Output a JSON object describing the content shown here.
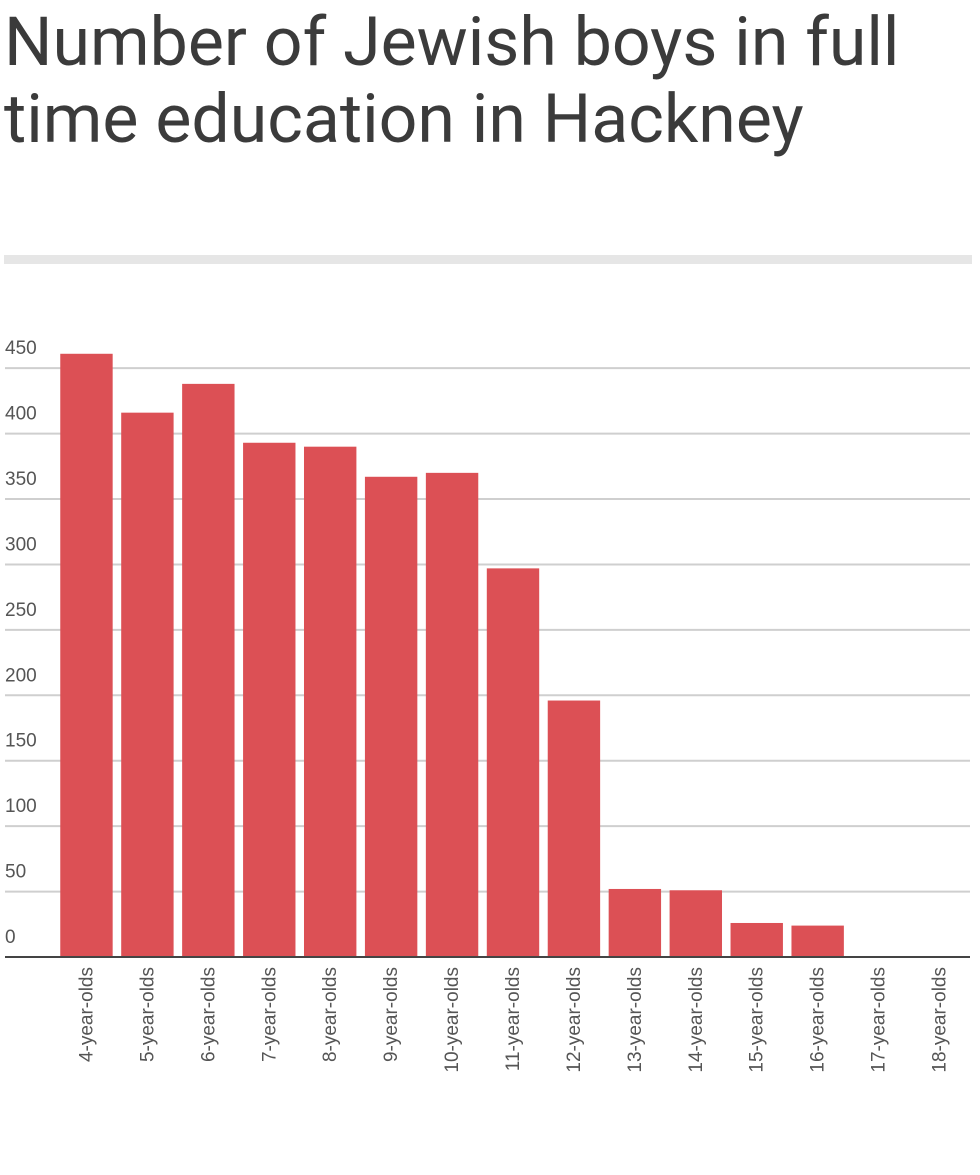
{
  "chart_data": {
    "type": "bar",
    "title": "Number of Jewish boys in full time education in Hackney",
    "categories": [
      "4-year-olds",
      "5-year-olds",
      "6-year-olds",
      "7-year-olds",
      "8-year-olds",
      "9-year-olds",
      "10-year-olds",
      "11-year-olds",
      "12-year-olds",
      "13-year-olds",
      "14-year-olds",
      "15-year-olds",
      "16-year-olds",
      "17-year-olds",
      "18-year-olds"
    ],
    "values": [
      461,
      416,
      438,
      393,
      390,
      367,
      370,
      297,
      196,
      52,
      51,
      26,
      24,
      0,
      0
    ],
    "color": "#dc5055",
    "ylim": [
      0,
      470
    ],
    "yticks": [
      0,
      50,
      100,
      150,
      200,
      250,
      300,
      350,
      400,
      450
    ],
    "grid": true
  }
}
